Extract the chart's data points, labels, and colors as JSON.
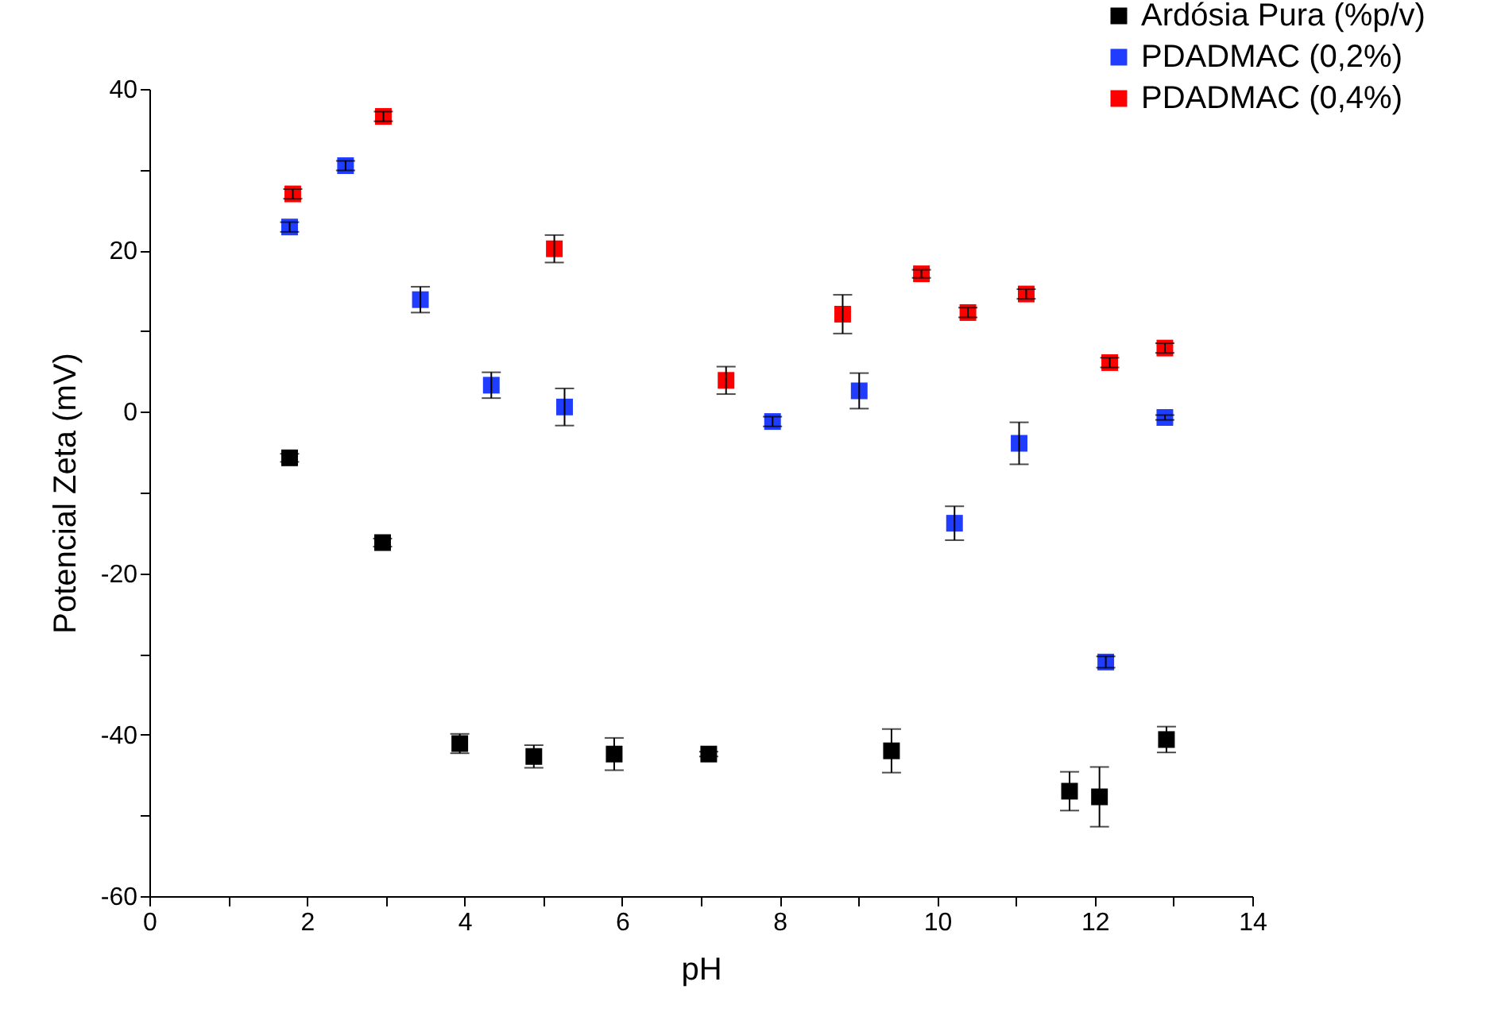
{
  "chart_data": {
    "type": "scatter",
    "xlabel": "pH",
    "ylabel": "Potencial Zeta (mV)",
    "marker": "square",
    "legend": "top right",
    "xlim": [
      0,
      14
    ],
    "xticks": [
      0,
      {
        "value": 1,
        "label": null
      },
      2,
      {
        "value": 3,
        "label": null
      },
      4,
      {
        "value": 5,
        "label": null
      },
      6,
      {
        "value": 7,
        "label": null
      },
      8,
      {
        "value": 9,
        "label": null
      },
      10,
      {
        "value": 11,
        "label": null
      },
      12,
      {
        "value": 13,
        "label": null
      },
      14
    ],
    "ylim": [
      -60,
      40
    ],
    "yticks": [
      -60,
      {
        "value": -50,
        "label": null
      },
      -40,
      {
        "value": -30,
        "label": null
      },
      -20,
      {
        "value": -10,
        "label": null
      },
      0,
      {
        "value": 10,
        "label": null
      },
      20,
      {
        "value": 30,
        "label": null
      },
      40
    ],
    "series": [
      {
        "name": "Ardósia Pura (%p/v)",
        "color": "#000000",
        "x": [
          1.78,
          2.96,
          3.94,
          4.88,
          5.9,
          7.1,
          9.42,
          11.68,
          12.06,
          12.91
        ],
        "values": [
          -5.7,
          -16.2,
          -41.1,
          -42.7,
          -42.4,
          -42.4,
          -42.0,
          -47.0,
          -47.7,
          -40.6
        ],
        "errors": [
          0.5,
          0.5,
          1.2,
          1.4,
          2.0,
          0.3,
          2.7,
          2.4,
          3.7,
          1.6
        ]
      },
      {
        "name": "PDADMAC (0,2%)",
        "color": "#1f3cff",
        "x": [
          1.78,
          2.49,
          3.44,
          4.34,
          5.27,
          7.91,
          9.01,
          10.22,
          11.04,
          12.14,
          12.89
        ],
        "values": [
          22.9,
          30.5,
          13.9,
          3.3,
          0.6,
          -1.2,
          2.6,
          -13.8,
          -3.9,
          -31.0,
          -0.7
        ],
        "errors": [
          0.6,
          0.6,
          1.6,
          1.6,
          2.3,
          0.6,
          2.2,
          2.1,
          2.6,
          0.7,
          0.3
        ]
      },
      {
        "name": "PDADMAC (0,4%)",
        "color": "#ff0000",
        "x": [
          1.82,
          2.97,
          5.14,
          7.32,
          8.8,
          9.8,
          10.39,
          11.13,
          12.19,
          12.89
        ],
        "values": [
          27.0,
          36.6,
          20.2,
          3.9,
          12.1,
          17.1,
          12.3,
          14.6,
          6.1,
          7.9
        ],
        "errors": [
          0.6,
          0.6,
          1.7,
          1.7,
          2.4,
          0.5,
          0.6,
          0.6,
          0.6,
          0.6
        ]
      }
    ]
  }
}
